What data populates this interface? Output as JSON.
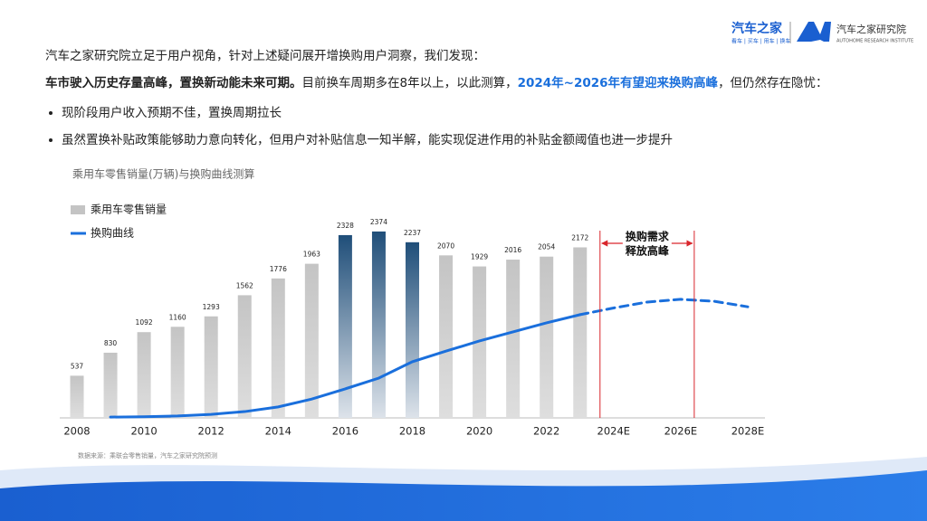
{
  "header": {
    "brand": "汽车之家",
    "brand_tagline": "看车 | 买车 | 用车 | 换车",
    "institute": "汽车之家研究院",
    "institute_en": "AUTOHOME RESEARCH INSTITUTE"
  },
  "intro": "汽车之家研究院立足于用户视角，针对上述疑问展开增换购用户洞察，我们发现：",
  "finding": {
    "bold": "车市驶入历史存量高峰，置换新动能未来可期。",
    "text1": "目前换车周期多在8年以上，以此测算，",
    "highlight": "2024年~2026年有望迎来换购高峰",
    "text2": "，但仍然存在隐忧："
  },
  "bullets": [
    "现阶段用户收入预期不佳，置换周期拉长",
    "虽然置换补贴政策能够助力意向转化，但用户对补贴信息一知半解，能实现促进作用的补贴金额阈值也进一步提升"
  ],
  "chart_data": {
    "type": "bar",
    "title": "乘用车零售销量(万辆)与换购曲线测算",
    "categories": [
      "2008",
      null,
      "2010",
      null,
      "2012",
      null,
      "2014",
      null,
      "2016",
      null,
      "2018",
      null,
      "2020",
      null,
      "2022",
      null,
      "2024E",
      null,
      "2026E",
      null,
      "2028E"
    ],
    "series": [
      {
        "name": "乘用车零售销量",
        "color": "#c4c4c4",
        "values": [
          537,
          830,
          1092,
          1160,
          1293,
          1562,
          1776,
          1963,
          2328,
          2374,
          2237,
          2070,
          1929,
          2016,
          2054,
          2172,
          null,
          null,
          null,
          null,
          null
        ],
        "bar_colors": [
          "#c4c4c4",
          "#c4c4c4",
          "#c4c4c4",
          "#c4c4c4",
          "#c4c4c4",
          "#c4c4c4",
          "#c4c4c4",
          "#c4c4c4",
          "#1f4e79",
          "#1f4e79",
          "#1f4e79",
          "#c4c4c4",
          "#c4c4c4",
          "#c4c4c4",
          "#c4c4c4",
          "#c4c4c4",
          null,
          null,
          null,
          null,
          null
        ]
      },
      {
        "name": "换购曲线",
        "type": "line",
        "color": "#1a6fdc",
        "values": [
          null,
          10,
          15,
          25,
          45,
          80,
          140,
          240,
          370,
          507,
          715,
          850,
          980,
          1095,
          1210,
          1315,
          null,
          null,
          null,
          null,
          null
        ],
        "forecast_values": [
          null,
          null,
          null,
          null,
          null,
          null,
          null,
          null,
          null,
          null,
          null,
          null,
          null,
          null,
          null,
          1315,
          1400,
          1475,
          1510,
          1485,
          1415
        ]
      }
    ],
    "ylim": [
      0,
      2500
    ],
    "annotation": {
      "lines": [
        "换购需求",
        "释放高峰"
      ],
      "from": "2024E",
      "to": "2026E",
      "color": "#d9262c"
    },
    "source": "数据来源：乘联会零售销量，汽车之家研究院预测"
  }
}
